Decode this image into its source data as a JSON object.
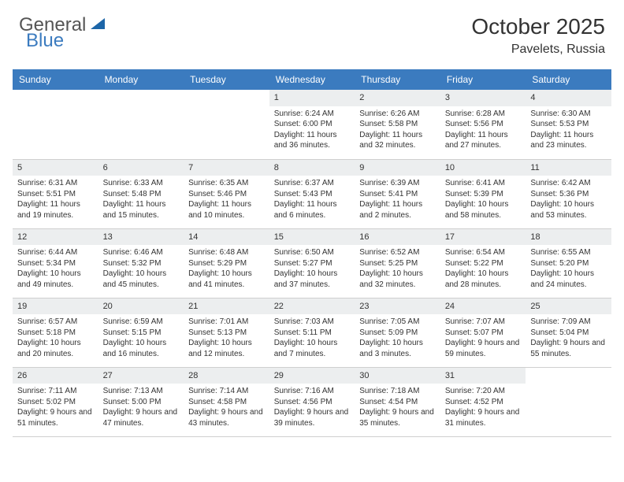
{
  "logo": {
    "general": "General",
    "blue": "Blue",
    "shape_color": "#1d66a8"
  },
  "title": {
    "month": "October 2025",
    "location": "Pavelets, Russia"
  },
  "colors": {
    "header_bg": "#3b7bbf",
    "header_text": "#ffffff",
    "band_bg": "#eceeef",
    "border": "#cfcfcf",
    "text": "#333333",
    "logo_grey": "#555555",
    "logo_blue": "#3b7bbf"
  },
  "day_names": [
    "Sunday",
    "Monday",
    "Tuesday",
    "Wednesday",
    "Thursday",
    "Friday",
    "Saturday"
  ],
  "weeks": [
    [
      {
        "empty": true
      },
      {
        "empty": true
      },
      {
        "empty": true
      },
      {
        "num": "1",
        "sunrise": "6:24 AM",
        "sunset": "6:00 PM",
        "daylight": "11 hours and 36 minutes."
      },
      {
        "num": "2",
        "sunrise": "6:26 AM",
        "sunset": "5:58 PM",
        "daylight": "11 hours and 32 minutes."
      },
      {
        "num": "3",
        "sunrise": "6:28 AM",
        "sunset": "5:56 PM",
        "daylight": "11 hours and 27 minutes."
      },
      {
        "num": "4",
        "sunrise": "6:30 AM",
        "sunset": "5:53 PM",
        "daylight": "11 hours and 23 minutes."
      }
    ],
    [
      {
        "num": "5",
        "sunrise": "6:31 AM",
        "sunset": "5:51 PM",
        "daylight": "11 hours and 19 minutes."
      },
      {
        "num": "6",
        "sunrise": "6:33 AM",
        "sunset": "5:48 PM",
        "daylight": "11 hours and 15 minutes."
      },
      {
        "num": "7",
        "sunrise": "6:35 AM",
        "sunset": "5:46 PM",
        "daylight": "11 hours and 10 minutes."
      },
      {
        "num": "8",
        "sunrise": "6:37 AM",
        "sunset": "5:43 PM",
        "daylight": "11 hours and 6 minutes."
      },
      {
        "num": "9",
        "sunrise": "6:39 AM",
        "sunset": "5:41 PM",
        "daylight": "11 hours and 2 minutes."
      },
      {
        "num": "10",
        "sunrise": "6:41 AM",
        "sunset": "5:39 PM",
        "daylight": "10 hours and 58 minutes."
      },
      {
        "num": "11",
        "sunrise": "6:42 AM",
        "sunset": "5:36 PM",
        "daylight": "10 hours and 53 minutes."
      }
    ],
    [
      {
        "num": "12",
        "sunrise": "6:44 AM",
        "sunset": "5:34 PM",
        "daylight": "10 hours and 49 minutes."
      },
      {
        "num": "13",
        "sunrise": "6:46 AM",
        "sunset": "5:32 PM",
        "daylight": "10 hours and 45 minutes."
      },
      {
        "num": "14",
        "sunrise": "6:48 AM",
        "sunset": "5:29 PM",
        "daylight": "10 hours and 41 minutes."
      },
      {
        "num": "15",
        "sunrise": "6:50 AM",
        "sunset": "5:27 PM",
        "daylight": "10 hours and 37 minutes."
      },
      {
        "num": "16",
        "sunrise": "6:52 AM",
        "sunset": "5:25 PM",
        "daylight": "10 hours and 32 minutes."
      },
      {
        "num": "17",
        "sunrise": "6:54 AM",
        "sunset": "5:22 PM",
        "daylight": "10 hours and 28 minutes."
      },
      {
        "num": "18",
        "sunrise": "6:55 AM",
        "sunset": "5:20 PM",
        "daylight": "10 hours and 24 minutes."
      }
    ],
    [
      {
        "num": "19",
        "sunrise": "6:57 AM",
        "sunset": "5:18 PM",
        "daylight": "10 hours and 20 minutes."
      },
      {
        "num": "20",
        "sunrise": "6:59 AM",
        "sunset": "5:15 PM",
        "daylight": "10 hours and 16 minutes."
      },
      {
        "num": "21",
        "sunrise": "7:01 AM",
        "sunset": "5:13 PM",
        "daylight": "10 hours and 12 minutes."
      },
      {
        "num": "22",
        "sunrise": "7:03 AM",
        "sunset": "5:11 PM",
        "daylight": "10 hours and 7 minutes."
      },
      {
        "num": "23",
        "sunrise": "7:05 AM",
        "sunset": "5:09 PM",
        "daylight": "10 hours and 3 minutes."
      },
      {
        "num": "24",
        "sunrise": "7:07 AM",
        "sunset": "5:07 PM",
        "daylight": "9 hours and 59 minutes."
      },
      {
        "num": "25",
        "sunrise": "7:09 AM",
        "sunset": "5:04 PM",
        "daylight": "9 hours and 55 minutes."
      }
    ],
    [
      {
        "num": "26",
        "sunrise": "7:11 AM",
        "sunset": "5:02 PM",
        "daylight": "9 hours and 51 minutes."
      },
      {
        "num": "27",
        "sunrise": "7:13 AM",
        "sunset": "5:00 PM",
        "daylight": "9 hours and 47 minutes."
      },
      {
        "num": "28",
        "sunrise": "7:14 AM",
        "sunset": "4:58 PM",
        "daylight": "9 hours and 43 minutes."
      },
      {
        "num": "29",
        "sunrise": "7:16 AM",
        "sunset": "4:56 PM",
        "daylight": "9 hours and 39 minutes."
      },
      {
        "num": "30",
        "sunrise": "7:18 AM",
        "sunset": "4:54 PM",
        "daylight": "9 hours and 35 minutes."
      },
      {
        "num": "31",
        "sunrise": "7:20 AM",
        "sunset": "4:52 PM",
        "daylight": "9 hours and 31 minutes."
      },
      {
        "empty": true
      }
    ]
  ],
  "labels": {
    "sunrise": "Sunrise:",
    "sunset": "Sunset:",
    "daylight": "Daylight:"
  }
}
